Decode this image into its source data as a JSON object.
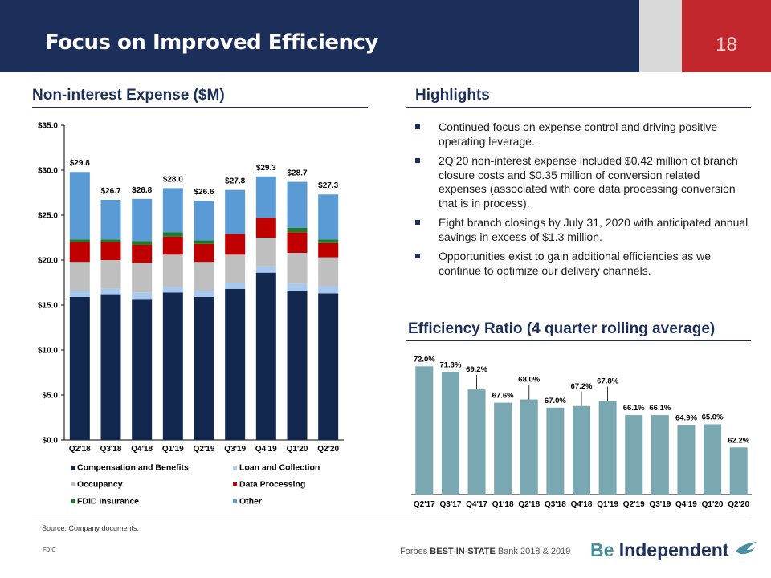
{
  "header": {
    "title": "Focus on Improved Efficiency",
    "page_number": "18"
  },
  "left_section": {
    "title": "Non-interest  Expense ($M)"
  },
  "highlights": {
    "title": "Highlights",
    "bullets": [
      "Continued focus on expense control and driving positive operating leverage.",
      "2Q’20 non-interest expense included $0.42 million of branch closure costs and $0.35 million of conversion related expenses (associated with core data processing conversion that is in process).",
      "Eight branch closings by July 31, 2020 with anticipated annual  savings in excess of $1.3 million.",
      "Opportunities exist to gain additional efficiencies as we continue to optimize our delivery channels."
    ]
  },
  "right_section": {
    "title": "Efficiency Ratio (4 quarter rolling average)"
  },
  "footer": {
    "source": "Source: Company documents.",
    "fdic": "FDIC",
    "forbes_prefix": "Forbes ",
    "forbes_bold": "BEST-IN-STATE",
    "forbes_suffix": " Bank   2018 & 2019",
    "brand_be": "Be",
    "brand_rest": " Independent"
  },
  "colors": {
    "navy": "#1c2f5a",
    "red": "#c1272d",
    "comp": "#13284f",
    "loan": "#a7c9ef",
    "occupancy": "#bfbfbf",
    "data": "#c00000",
    "fdic": "#1e7b2e",
    "other": "#5b9bd5",
    "eff_bar": "#79a8b3"
  },
  "chart_data": [
    {
      "type": "bar",
      "stacked": true,
      "categories": [
        "Q2'18",
        "Q3'18",
        "Q4'18",
        "Q1'19",
        "Q2'19",
        "Q3'19",
        "Q4'19",
        "Q1'20",
        "Q2'20"
      ],
      "series": [
        {
          "name": "Compensation and Benefits",
          "color": "#13284f",
          "values": [
            15.9,
            16.2,
            15.6,
            16.4,
            15.9,
            16.8,
            18.6,
            16.6,
            16.3
          ]
        },
        {
          "name": "Loan and Collection",
          "color": "#a7c9ef",
          "values": [
            0.7,
            0.6,
            0.8,
            0.6,
            0.7,
            0.7,
            0.7,
            0.8,
            0.8
          ]
        },
        {
          "name": "Occupancy",
          "color": "#bfbfbf",
          "values": [
            3.2,
            3.2,
            3.3,
            3.6,
            3.2,
            3.1,
            3.2,
            3.4,
            3.2
          ]
        },
        {
          "name": "Data Processing",
          "color": "#c00000",
          "values": [
            2.2,
            2.0,
            2.0,
            2.0,
            2.0,
            2.3,
            2.2,
            2.3,
            1.6
          ]
        },
        {
          "name": "FDIC Insurance",
          "color": "#1e7b2e",
          "values": [
            0.3,
            0.3,
            0.4,
            0.5,
            0.4,
            0.0,
            0.0,
            0.5,
            0.4
          ]
        },
        {
          "name": "Other",
          "color": "#5b9bd5",
          "values": [
            7.5,
            4.4,
            4.7,
            4.9,
            4.4,
            4.9,
            4.6,
            5.1,
            5.0
          ]
        }
      ],
      "totals": [
        "$29.8",
        "$26.7",
        "$26.8",
        "$28.0",
        "$26.6",
        "$27.8",
        "$29.3",
        "$28.7",
        "$27.3"
      ],
      "y_ticks": [
        "$0.0",
        "$5.0",
        "$10.0",
        "$15.0",
        "$20.0",
        "$25.0",
        "$30.0",
        "$35.0"
      ],
      "ylim": [
        0,
        35
      ],
      "legend_position": "bottom"
    },
    {
      "type": "bar",
      "categories": [
        "Q2'17",
        "Q3'17",
        "Q4'17",
        "Q1'18",
        "Q2'18",
        "Q3'18",
        "Q4'18",
        "Q1'19",
        "Q2'19",
        "Q3'19",
        "Q4'19",
        "Q1'20",
        "Q2'20"
      ],
      "values": [
        72.0,
        71.3,
        69.2,
        67.6,
        68.0,
        67.0,
        67.2,
        67.8,
        66.1,
        66.1,
        64.9,
        65.0,
        62.2
      ],
      "labels": [
        "72.0%",
        "71.3%",
        "69.2%",
        "67.6%",
        "68.0%",
        "67.0%",
        "67.2%",
        "67.8%",
        "66.1%",
        "66.1%",
        "64.9%",
        "65.0%",
        "62.2%"
      ],
      "ylim": [
        56.5,
        73
      ]
    }
  ]
}
